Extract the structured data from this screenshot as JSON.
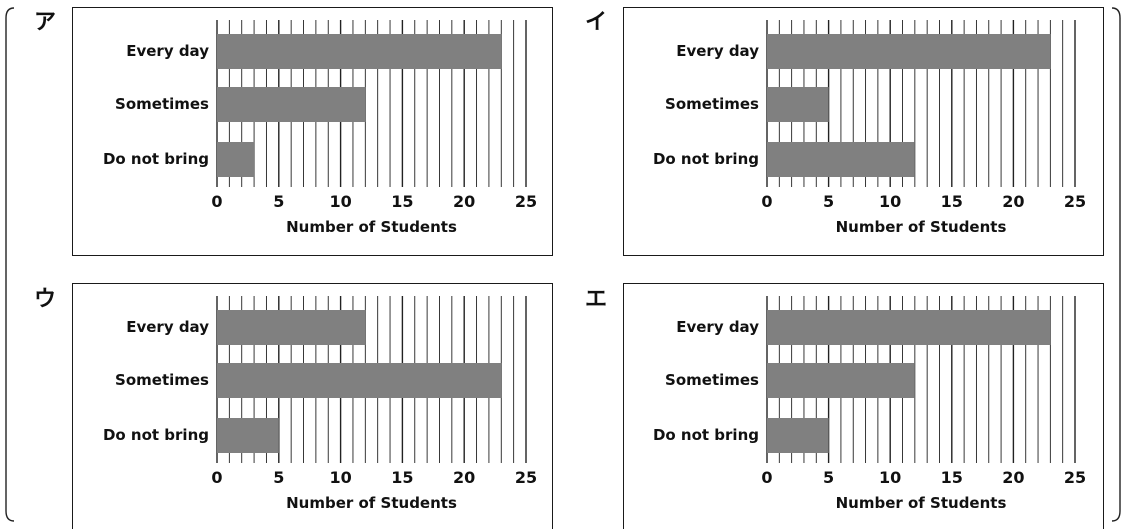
{
  "colors": {
    "bar": "#808080",
    "grid": "#222222",
    "frame": "#1a1a1a"
  },
  "chart_data": [
    {
      "panel": "ア",
      "type": "bar",
      "orientation": "horizontal",
      "categories": [
        "Every day",
        "Sometimes",
        "Do not bring"
      ],
      "values": [
        23,
        12,
        3
      ],
      "xlabel": "Number of Students",
      "xlim": [
        0,
        25
      ],
      "xticks": [
        0,
        5,
        10,
        15,
        20,
        25
      ],
      "grid": true
    },
    {
      "panel": "イ",
      "type": "bar",
      "orientation": "horizontal",
      "categories": [
        "Every day",
        "Sometimes",
        "Do not bring"
      ],
      "values": [
        23,
        5,
        12
      ],
      "xlabel": "Number of Students",
      "xlim": [
        0,
        25
      ],
      "xticks": [
        0,
        5,
        10,
        15,
        20,
        25
      ],
      "grid": true
    },
    {
      "panel": "ウ",
      "type": "bar",
      "orientation": "horizontal",
      "categories": [
        "Every day",
        "Sometimes",
        "Do not bring"
      ],
      "values": [
        12,
        23,
        5
      ],
      "xlabel": "Number of Students",
      "xlim": [
        0,
        25
      ],
      "xticks": [
        0,
        5,
        10,
        15,
        20,
        25
      ],
      "grid": true
    },
    {
      "panel": "エ",
      "type": "bar",
      "orientation": "horizontal",
      "categories": [
        "Every day",
        "Sometimes",
        "Do not bring"
      ],
      "values": [
        23,
        12,
        5
      ],
      "xlabel": "Number of Students",
      "xlim": [
        0,
        25
      ],
      "xticks": [
        0,
        5,
        10,
        15,
        20,
        25
      ],
      "grid": true
    }
  ]
}
